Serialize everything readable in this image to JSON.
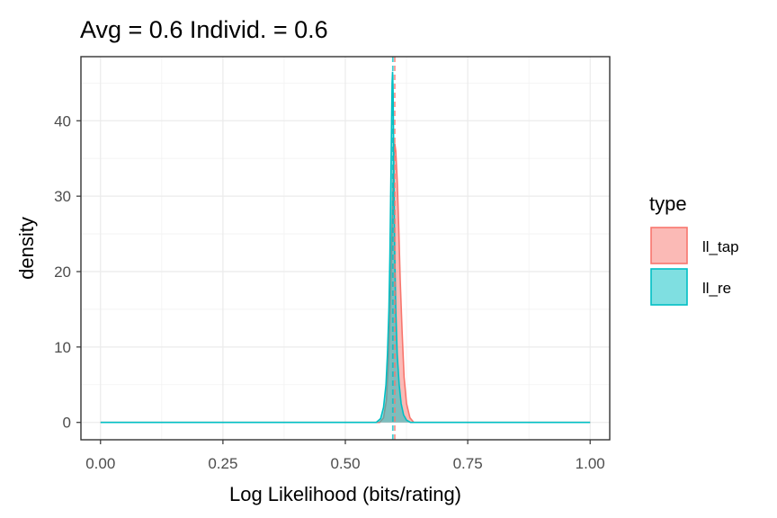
{
  "chart_data": {
    "type": "area",
    "title": "Avg = 0.6 Individ. = 0.6",
    "xlabel": "Log Likelihood (bits/rating)",
    "ylabel": "density",
    "xlim": [
      -0.04,
      1.04
    ],
    "ylim": [
      -2.3,
      48.5
    ],
    "x_ticks": [
      0.0,
      0.25,
      0.5,
      0.75,
      1.0
    ],
    "x_tick_labels": [
      "0.00",
      "0.25",
      "0.50",
      "0.75",
      "1.00"
    ],
    "y_ticks": [
      0,
      10,
      20,
      30,
      40
    ],
    "y_tick_labels": [
      "0",
      "10",
      "20",
      "30",
      "40"
    ],
    "grid": true,
    "legend": {
      "title": "type",
      "position": "right"
    },
    "series": [
      {
        "name": "ll_tap",
        "line_color": "#F8766D",
        "fill_color": "#F8766D",
        "fill_opacity": 0.5,
        "mean_line": 0.601,
        "x": [
          0.0,
          0.57,
          0.578,
          0.584,
          0.588,
          0.591,
          0.594,
          0.597,
          0.599,
          0.601,
          0.603,
          0.606,
          0.609,
          0.612,
          0.616,
          0.62,
          0.625,
          0.632,
          0.64,
          1.0
        ],
        "values": [
          0,
          0,
          0.6,
          3,
          8,
          14,
          22,
          30,
          35,
          37,
          36,
          32,
          26,
          19,
          12,
          6,
          2.5,
          0.6,
          0,
          0
        ]
      },
      {
        "name": "ll_re",
        "line_color": "#00BFC4",
        "fill_color": "#00BFC4",
        "fill_opacity": 0.5,
        "mean_line": 0.597,
        "x": [
          0.0,
          0.563,
          0.572,
          0.578,
          0.583,
          0.586,
          0.589,
          0.591,
          0.593,
          0.5945,
          0.5955,
          0.5965,
          0.5975,
          0.5985,
          0.5995,
          0.601,
          0.603,
          0.606,
          0.61,
          0.614,
          0.619,
          0.625,
          0.633,
          1.0
        ],
        "values": [
          0,
          0,
          0.5,
          2,
          5,
          9,
          15,
          22,
          32,
          40,
          45,
          46.5,
          44,
          38,
          30,
          22,
          15,
          9,
          5,
          2.5,
          1,
          0.3,
          0,
          0
        ]
      }
    ]
  }
}
